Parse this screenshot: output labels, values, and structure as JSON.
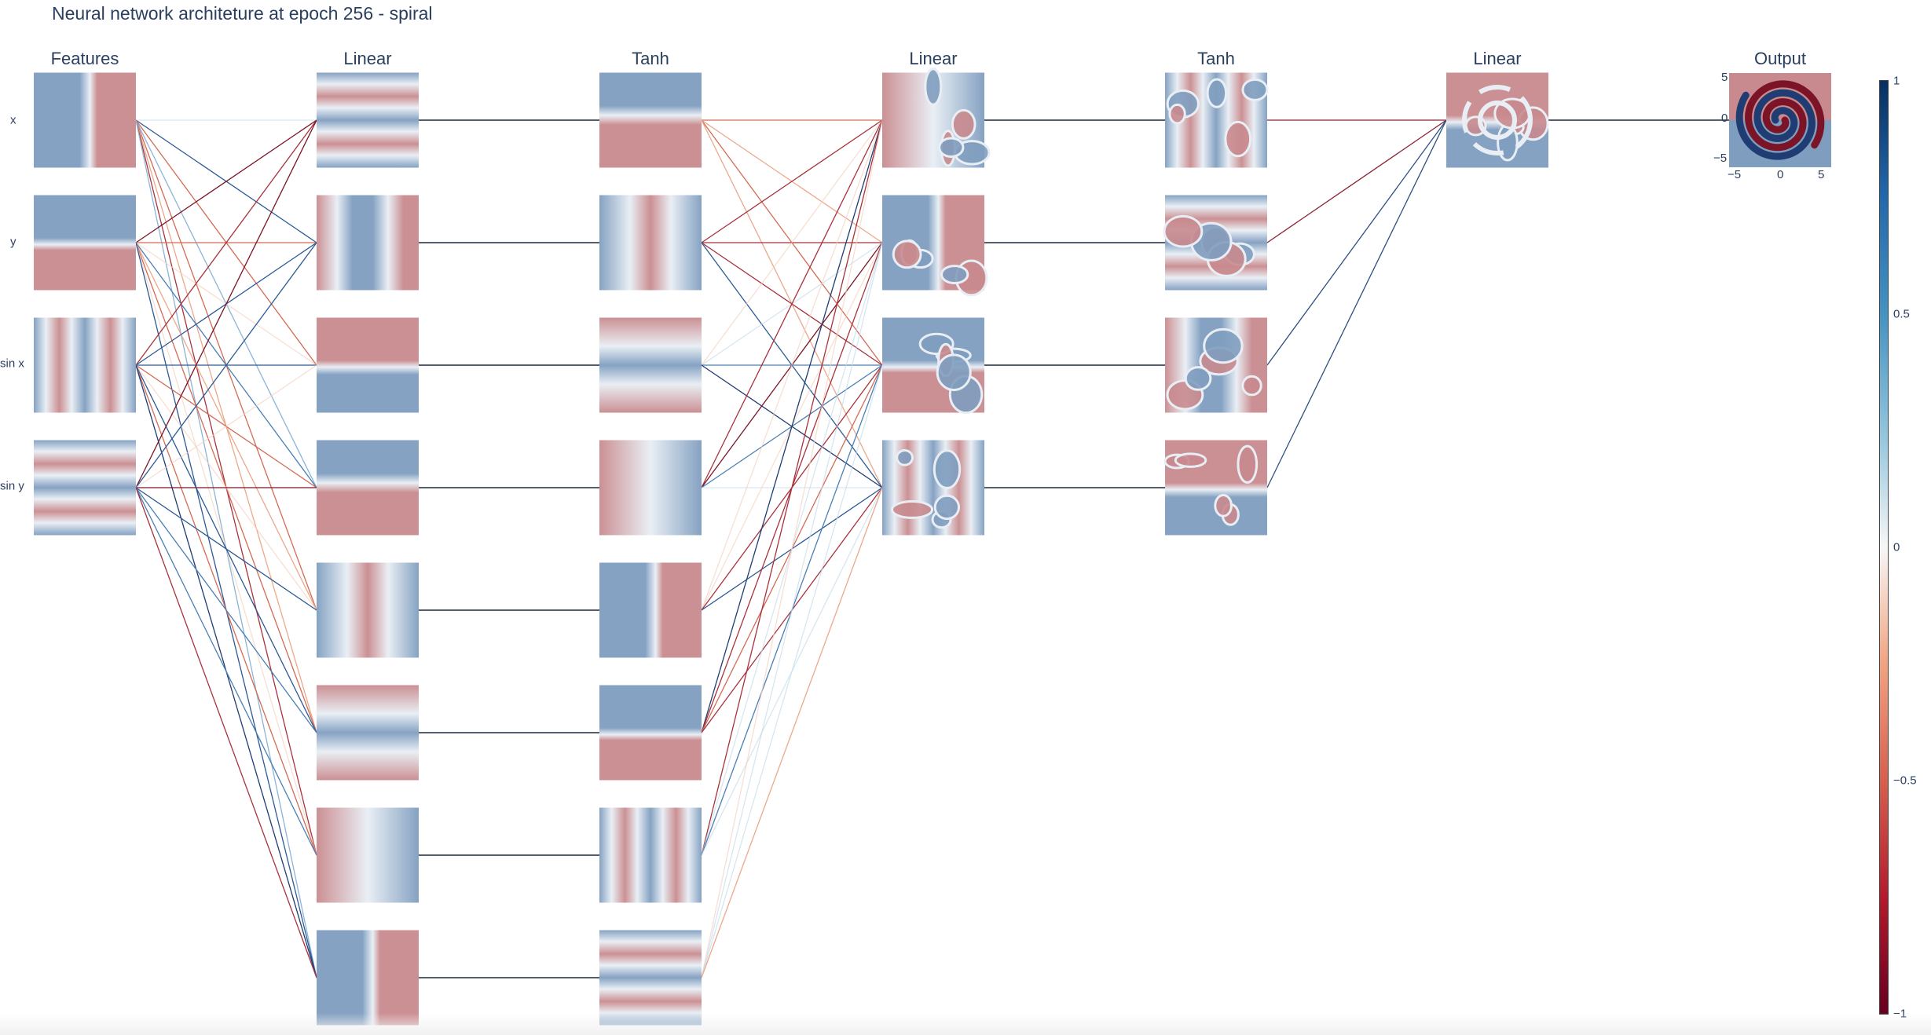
{
  "title": "Neural network architeture at epoch 256 - spiral",
  "columns": [
    {
      "label": "Features",
      "nodes": 4
    },
    {
      "label": "Linear",
      "nodes": 8
    },
    {
      "label": "Tanh",
      "nodes": 8
    },
    {
      "label": "Linear",
      "nodes": 4
    },
    {
      "label": "Tanh",
      "nodes": 4
    },
    {
      "label": "Linear",
      "nodes": 1
    },
    {
      "label": "Output",
      "nodes": 1
    }
  ],
  "feature_labels": [
    "x",
    "y",
    "sin x",
    "sin y"
  ],
  "output_axis": {
    "x_ticks": [
      "−5",
      "0",
      "5"
    ],
    "y_ticks": [
      "5",
      "0",
      "−5"
    ]
  },
  "colorbar": {
    "ticks": [
      "1",
      "0.5",
      "0",
      "−0.5",
      "−1"
    ],
    "range": [
      -1,
      1
    ]
  },
  "colors": {
    "positive": "#1f3c73",
    "negative": "#7a1426",
    "tile_blue": "#7f9dbf",
    "tile_red": "#c88a8e",
    "title_text": "#2a3f5f"
  }
}
